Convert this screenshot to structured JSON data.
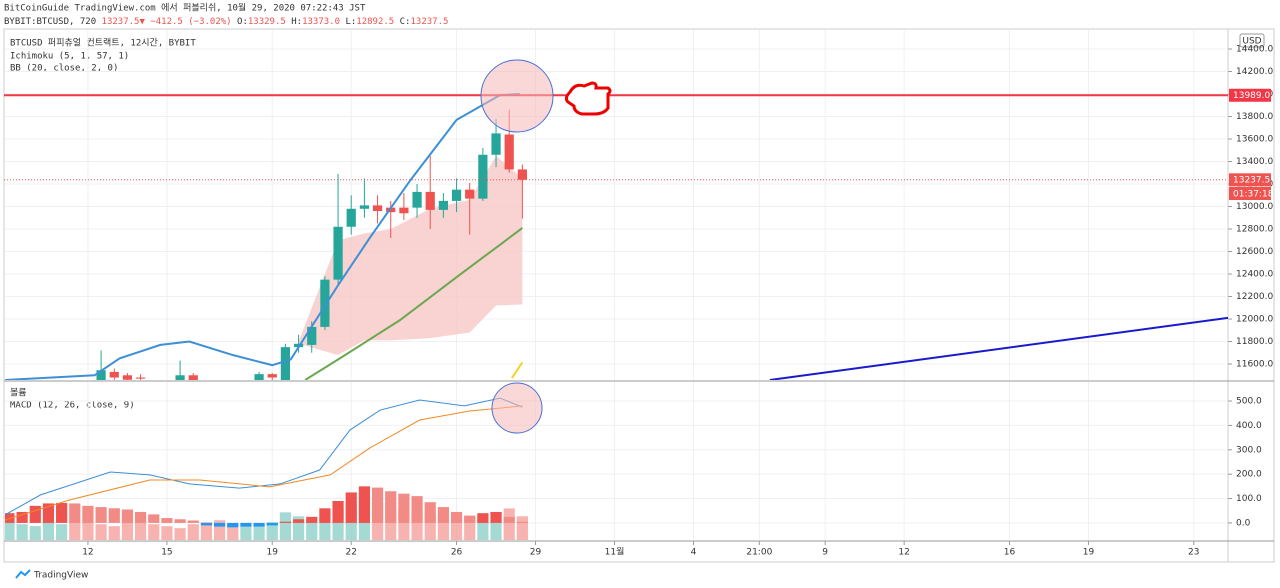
{
  "header": {
    "line1": "BitCoinGuide TradingView.com 에서 퍼블리쉬, 10월 29, 2020 07:22:43 JST",
    "symbol": "BYBIT:BTCUSD, 720",
    "last": "13237.5▼",
    "change": "−412.5 (−3.02%)",
    "o": "O:",
    "ov": "13329.5",
    "h": "H:",
    "hv": "13373.0",
    "l": "L:",
    "lv": "12892.5",
    "c": "C:",
    "cv": "13237.5",
    "legend": [
      "BTCUSD 퍼피츄얼 컨트랙트, 12시간, BYBIT",
      "Ichimoku (5, 1, 57, 1)",
      "BB (20, close, 2, 0)"
    ],
    "currency": "USD",
    "countdown": "01:37:18",
    "footer": "TradingView"
  },
  "chart_data": [
    {
      "type": "candlestick",
      "xlim": [
        -6.3,
        86.6
      ],
      "ylim": [
        11458,
        14569
      ],
      "yticks": [
        {
          "value": 11600,
          "label": "11600.0"
        },
        {
          "value": 11800,
          "label": "11800.0"
        },
        {
          "value": 12000,
          "label": "12000.0"
        },
        {
          "value": 12200,
          "label": "12200.0"
        },
        {
          "value": 12400,
          "label": "12400.0"
        },
        {
          "value": 12600,
          "label": "12600.0"
        },
        {
          "value": 12800,
          "label": "12800.0"
        },
        {
          "value": 13000,
          "label": "13000.0"
        },
        {
          "value": 13200,
          "label": "13200.0"
        },
        {
          "value": 13400,
          "label": "13400.0"
        },
        {
          "value": 13600,
          "label": "13600.0"
        },
        {
          "value": 13800,
          "label": "13800.0"
        },
        {
          "value": 14000,
          "label": "14000.0"
        },
        {
          "value": 14200,
          "label": "14200.0"
        },
        {
          "value": 14400,
          "label": "14400.0"
        }
      ],
      "grid": true,
      "up_color": "#26a69a",
      "down_color": "#ef5350",
      "candles": {
        "x": [
          1,
          2,
          3,
          4,
          7,
          8,
          13,
          14,
          15,
          16,
          17,
          18,
          19,
          20,
          21,
          22,
          23,
          24,
          25,
          26,
          27,
          28,
          29,
          30,
          31,
          32,
          33
        ],
        "open": [
          11420,
          11530,
          11500,
          11480,
          11440,
          11500,
          11450,
          11510,
          11440,
          11750,
          11770,
          11930,
          12350,
          12820,
          12980,
          13010,
          12990,
          12990,
          12990,
          13130,
          12970,
          13050,
          13150,
          13070,
          13460,
          13640,
          13329.5
        ],
        "high": [
          11720,
          11560,
          11520,
          11510,
          11630,
          11520,
          11530,
          11520,
          11780,
          11860,
          11980,
          12380,
          13290,
          13100,
          13250,
          13100,
          13050,
          13120,
          13200,
          13450,
          13120,
          13250,
          13210,
          13520,
          13780,
          13860,
          13373.0
        ],
        "low": [
          11380,
          11400,
          11400,
          11420,
          11400,
          11400,
          11400,
          11440,
          11420,
          11700,
          11700,
          11900,
          12300,
          12750,
          12900,
          12850,
          12720,
          12880,
          12900,
          12800,
          12900,
          12950,
          12750,
          13050,
          13350,
          13300,
          12892.5
        ],
        "close": [
          11545,
          11480,
          11460,
          11470,
          11500,
          11450,
          11510,
          11480,
          11750,
          11780,
          11930,
          12350,
          12820,
          12980,
          13010,
          12960,
          12950,
          12940,
          13130,
          12970,
          13050,
          13150,
          13070,
          13460,
          13650,
          13330,
          13237.5
        ]
      },
      "band": {
        "color": "#f8c8c6",
        "x": [
          16,
          19,
          21,
          23,
          26,
          29,
          31,
          33
        ],
        "upper": [
          11800,
          12700,
          12760,
          12800,
          12980,
          13060,
          13450,
          13250
        ],
        "lower": [
          11780,
          11680,
          11810,
          11810,
          11830,
          11880,
          12120,
          12130
        ]
      },
      "series": [
        {
          "color": "#3d8fd6",
          "x": [
            -6.3,
            0.5,
            2.4,
            5.5,
            7.7,
            11,
            14,
            15.4,
            19,
            21.4,
            24.5,
            28,
            31.3,
            32.8
          ],
          "values": [
            11458,
            11500,
            11650,
            11770,
            11800,
            11680,
            11590,
            11640,
            12300,
            12720,
            13235,
            13770,
            13990,
            14000
          ]
        },
        {
          "color": "#6aa84f",
          "x": [
            16.5,
            19,
            23.7,
            28.2,
            31.3,
            33
          ],
          "values": [
            11458,
            11640,
            11990,
            12390,
            12660,
            12810
          ]
        }
      ],
      "segments": [
        {
          "color": "#1a1acc",
          "x": [
            51.8,
            86.6
          ],
          "values": [
            11458,
            12010
          ]
        },
        {
          "color": "#f5d327",
          "x": [
            32.2,
            33
          ],
          "values": [
            11475,
            11615
          ]
        }
      ],
      "hlines": [
        {
          "value": 13989.0,
          "label": "13989.0",
          "color": "#f23645",
          "style": "solid"
        },
        {
          "value": 13237.5,
          "label": "13237.5",
          "color": "#ef5350",
          "style": "dotted"
        }
      ]
    },
    {
      "type": "macd",
      "legend": [
        "볼륨",
        "MACD (12, 26, close, 9)"
      ],
      "xlim": [
        -6.3,
        86.6
      ],
      "ylim": [
        -70,
        578
      ],
      "yticks": [
        {
          "value": 0,
          "label": "0.0"
        },
        {
          "value": 100,
          "label": "100.0"
        },
        {
          "value": 200,
          "label": "200.0"
        },
        {
          "value": 300,
          "label": "300.0"
        },
        {
          "value": 400,
          "label": "400.0"
        },
        {
          "value": 500,
          "label": "500.0"
        }
      ],
      "xticks": [
        {
          "value": 0,
          "label": "12"
        },
        {
          "value": 6,
          "label": "15"
        },
        {
          "value": 14,
          "label": "19"
        },
        {
          "value": 20,
          "label": "22"
        },
        {
          "value": 28,
          "label": "26"
        },
        {
          "value": 34,
          "label": "29"
        },
        {
          "value": 40,
          "label": "11월"
        },
        {
          "value": 46,
          "label": "4"
        },
        {
          "value": 51,
          "label": "21:00"
        },
        {
          "value": 56,
          "label": "9"
        },
        {
          "value": 62,
          "label": "12"
        },
        {
          "value": 70,
          "label": "16"
        },
        {
          "value": 76,
          "label": "19"
        },
        {
          "value": 84,
          "label": "23"
        }
      ],
      "grid": true,
      "hist_x": [
        -6,
        -5,
        -4,
        -3,
        -2,
        -1,
        0,
        1,
        2,
        3,
        4,
        5,
        6,
        7,
        8,
        9,
        10,
        11,
        12,
        13,
        14,
        15,
        16,
        17,
        18,
        19,
        20,
        21,
        22,
        23,
        24,
        25,
        26,
        27,
        28,
        29,
        30,
        31,
        32,
        33
      ],
      "histogram": [
        40,
        45,
        70,
        80,
        82,
        80,
        70,
        65,
        60,
        55,
        45,
        35,
        20,
        15,
        10,
        -10,
        -15,
        -18,
        -15,
        -15,
        -10,
        5,
        15,
        25,
        60,
        90,
        125,
        150,
        145,
        130,
        120,
        110,
        85,
        65,
        45,
        30,
        40,
        45,
        25,
        5
      ],
      "volume": [
        50,
        40,
        35,
        45,
        40,
        45,
        60,
        40,
        35,
        45,
        50,
        40,
        35,
        30,
        40,
        45,
        50,
        40,
        35,
        40,
        45,
        70,
        60,
        50,
        55,
        80,
        90,
        100,
        95,
        90,
        80,
        75,
        65,
        55,
        50,
        60,
        55,
        70,
        80,
        60
      ],
      "volume_lim": [
        0,
        400
      ],
      "up_color": "#8ed1c9",
      "down_color": "#f5a09c",
      "series": [
        {
          "color": "#3d8fd6",
          "x": [
            -6.3,
            -3.6,
            1.7,
            4.7,
            7.7,
            11.5,
            14.6,
            17.6,
            19.9,
            22.2,
            25.2,
            28.6,
            31.3,
            33
          ],
          "values": [
            33,
            115,
            209,
            197,
            160,
            143,
            160,
            217,
            381,
            463,
            504,
            480,
            512,
            475
          ]
        },
        {
          "color": "#f08a24",
          "x": [
            -6.3,
            -1.4,
            4.7,
            8.5,
            13.8,
            18.4,
            21.4,
            25.2,
            29,
            33
          ],
          "values": [
            12,
            94,
            176,
            176,
            148,
            197,
            307,
            422,
            459,
            480
          ]
        }
      ]
    }
  ]
}
